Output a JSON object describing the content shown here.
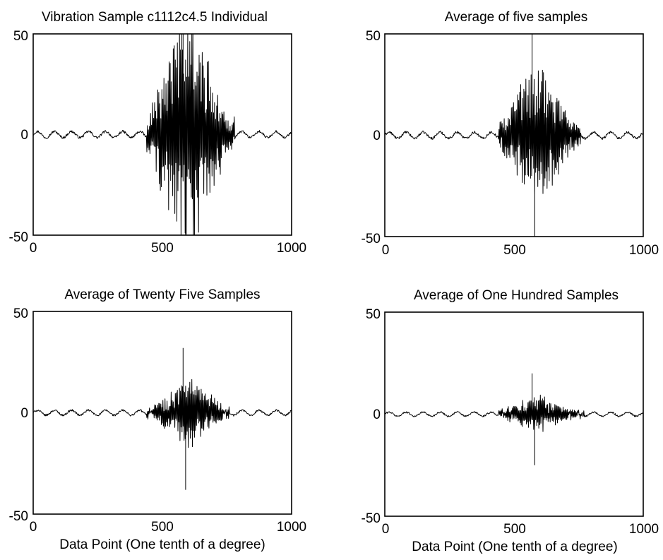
{
  "chart_data": [
    {
      "type": "line",
      "title": "Vibration Sample c1112c4.5 Individual",
      "xlabel": "",
      "ylabel": "",
      "xlim": [
        0,
        1000
      ],
      "ylim": [
        -50,
        50
      ],
      "x_ticks": [
        "0",
        "500",
        "1000"
      ],
      "y_ticks": [
        "50",
        "0",
        "-50"
      ],
      "grid": false,
      "signal": {
        "baseline_amplitude": 1.5,
        "burst_start": 440,
        "burst_end": 780,
        "burst_peak_amplitude": 60,
        "burst_center": 600,
        "positive_extreme": 50,
        "negative_extreme": -50
      }
    },
    {
      "type": "line",
      "title": "Average of five samples",
      "xlabel": "",
      "ylabel": "",
      "xlim": [
        0,
        1000
      ],
      "ylim": [
        -50,
        50
      ],
      "x_ticks": [
        "0",
        "500",
        "1000"
      ],
      "y_ticks": [
        "50",
        "0",
        "-50"
      ],
      "grid": false,
      "signal": {
        "baseline_amplitude": 1.5,
        "burst_start": 440,
        "burst_end": 760,
        "burst_peak_amplitude": 35,
        "burst_center": 590,
        "positive_extreme": 50,
        "negative_extreme": -50
      }
    },
    {
      "type": "line",
      "title": "Average of Twenty Five Samples",
      "xlabel": "Data Point (One tenth of a degree)",
      "ylabel": "",
      "xlim": [
        0,
        1000
      ],
      "ylim": [
        -50,
        50
      ],
      "x_ticks": [
        "0",
        "500",
        "1000"
      ],
      "y_ticks": [
        "50",
        "0",
        "-50"
      ],
      "grid": false,
      "signal": {
        "baseline_amplitude": 1.2,
        "burst_start": 440,
        "burst_end": 760,
        "burst_peak_amplitude": 16,
        "burst_center": 600,
        "positive_extreme": 32,
        "negative_extreme": -38
      }
    },
    {
      "type": "line",
      "title": "Average of One Hundred Samples",
      "xlabel": "Data Point (One tenth of a degree)",
      "ylabel": "",
      "xlim": [
        0,
        1000
      ],
      "ylim": [
        -50,
        50
      ],
      "x_ticks": [
        "0",
        "500",
        "1000"
      ],
      "y_ticks": [
        "50",
        "0",
        "-50"
      ],
      "grid": false,
      "signal": {
        "baseline_amplitude": 1.0,
        "burst_start": 440,
        "burst_end": 770,
        "burst_peak_amplitude": 8,
        "burst_center": 590,
        "positive_extreme": 20,
        "negative_extreme": -25
      }
    }
  ]
}
